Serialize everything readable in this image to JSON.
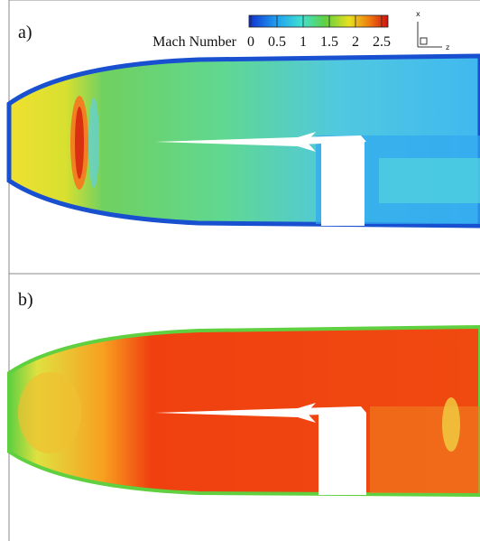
{
  "panels": [
    {
      "label": "a)"
    },
    {
      "label": "b)"
    }
  ],
  "colorbar": {
    "title": "Mach Number",
    "ticks": [
      0,
      0.5,
      1,
      1.5,
      2,
      2.5
    ]
  },
  "axes": {
    "x": "x",
    "z": "z"
  }
}
